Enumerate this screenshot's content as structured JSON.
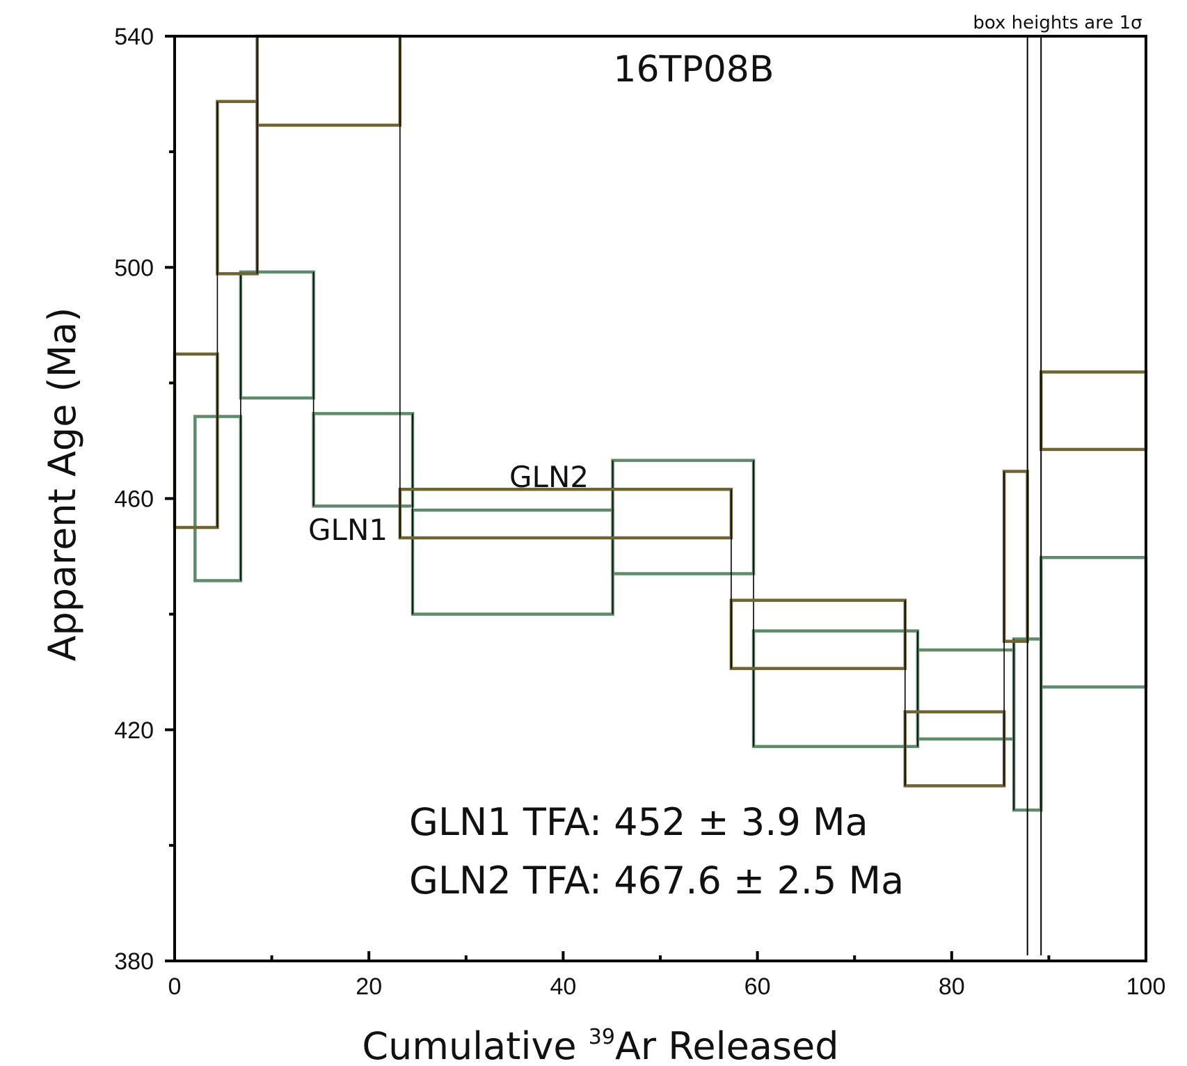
{
  "chart_data": {
    "type": "step",
    "title": "16TP08B",
    "xlabel": {
      "prefix": "Cumulative ",
      "sup": "39",
      "suffix": "Ar Released"
    },
    "ylabel": "Apparent Age (Ma)",
    "xlim": [
      0,
      100
    ],
    "ylim": [
      380,
      540
    ],
    "x_ticks": [
      0,
      20,
      40,
      60,
      80,
      100
    ],
    "y_ticks": [
      380,
      420,
      460,
      500,
      540
    ],
    "x_minor_step": 10,
    "y_minor_step": 20,
    "grid": false,
    "note": "box heights are 1σ",
    "cutoff_x": [
      87.8,
      89.2
    ],
    "annotations": {
      "gln1_tfa": "GLN1 TFA: 452 ± 3.9 Ma",
      "gln2_tfa": "GLN2 TFA: 467.6 ± 2.5 Ma"
    },
    "colors": {
      "GLN1": "#5f8a6b",
      "GLN2": "#6e6533",
      "axis": "#000000"
    },
    "series": [
      {
        "name": "GLN1",
        "steps": [
          {
            "x0": 2.1,
            "x1": 6.8,
            "age": 460.0,
            "err": 14.2
          },
          {
            "x0": 6.8,
            "x1": 14.3,
            "age": 488.3,
            "err": 10.9
          },
          {
            "x0": 14.3,
            "x1": 24.5,
            "age": 466.7,
            "err": 8.0
          },
          {
            "x0": 24.5,
            "x1": 45.1,
            "age": 449.0,
            "err": 9.0
          },
          {
            "x0": 45.1,
            "x1": 59.6,
            "age": 456.8,
            "err": 9.8
          },
          {
            "x0": 59.6,
            "x1": 76.5,
            "age": 427.1,
            "err": 10.0
          },
          {
            "x0": 76.5,
            "x1": 86.4,
            "age": 426.1,
            "err": 7.7
          },
          {
            "x0": 86.4,
            "x1": 89.2,
            "age": 420.9,
            "err": 14.8
          },
          {
            "x0": 89.2,
            "x1": 100.0,
            "age": 438.6,
            "err": 11.2
          }
        ]
      },
      {
        "name": "GLN2",
        "steps": [
          {
            "x0": 0.0,
            "x1": 4.4,
            "age": 470.0,
            "err": 15.0
          },
          {
            "x0": 4.4,
            "x1": 8.5,
            "age": 513.8,
            "err": 14.9
          },
          {
            "x0": 8.5,
            "x1": 23.2,
            "age": 532.3,
            "err": 7.7
          },
          {
            "x0": 23.2,
            "x1": 57.3,
            "age": 457.4,
            "err": 4.2
          },
          {
            "x0": 57.3,
            "x1": 75.2,
            "age": 436.5,
            "err": 5.9
          },
          {
            "x0": 75.2,
            "x1": 85.4,
            "age": 416.7,
            "err": 6.4
          },
          {
            "x0": 85.4,
            "x1": 87.8,
            "age": 450.0,
            "err": 14.7
          },
          {
            "x0": 89.2,
            "x1": 100.0,
            "age": 475.2,
            "err": 6.7
          }
        ]
      }
    ]
  }
}
